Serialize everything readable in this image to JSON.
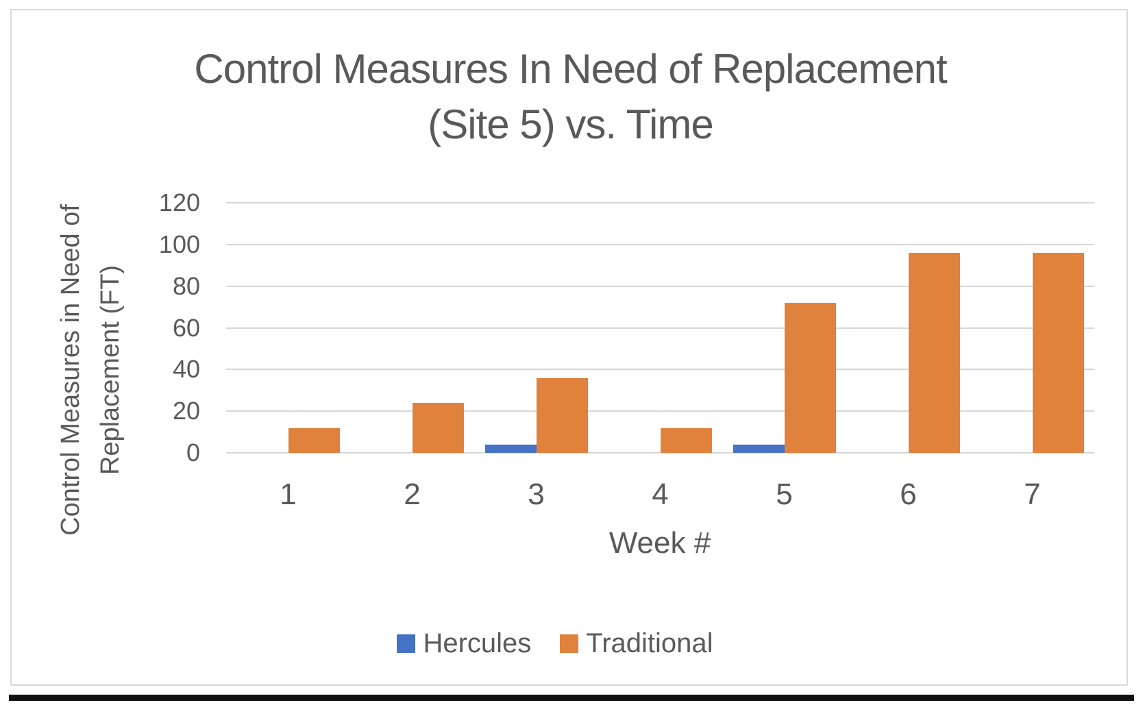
{
  "page": {
    "background": "#ffffff"
  },
  "frame": {
    "border_color": "#d9d6d6",
    "bottom_bar_color": "#111111"
  },
  "chart": {
    "title_line1": "Control Measures In Need of Replacement",
    "title_line2": "(Site 5) vs. Time",
    "y_axis_title_line1": "Control Measures in Need of",
    "y_axis_title_line2": "Replacement (FT)",
    "x_axis_title": "Week #",
    "text_color": "#595959",
    "gridline_color": "#d6d6d6",
    "legend": [
      {
        "label": "Hercules",
        "color": "#4472c4"
      },
      {
        "label": "Traditional",
        "color": "#e0813c"
      }
    ]
  },
  "chart_data": {
    "type": "bar",
    "title": "Control Measures In Need of Replacement (Site 5) vs. Time",
    "xlabel": "Week #",
    "ylabel": "Control Measures in Need of Replacement (FT)",
    "categories": [
      "1",
      "2",
      "3",
      "4",
      "5",
      "6",
      "7"
    ],
    "series": [
      {
        "name": "Hercules",
        "color": "#4472c4",
        "values": [
          0,
          0,
          4,
          0,
          4,
          0,
          0
        ]
      },
      {
        "name": "Traditional",
        "color": "#e0813c",
        "values": [
          12,
          24,
          36,
          12,
          72,
          96,
          96
        ]
      }
    ],
    "ylim": [
      0,
      120
    ],
    "ytick_step": 20,
    "grid": true,
    "legend_position": "bottom"
  }
}
